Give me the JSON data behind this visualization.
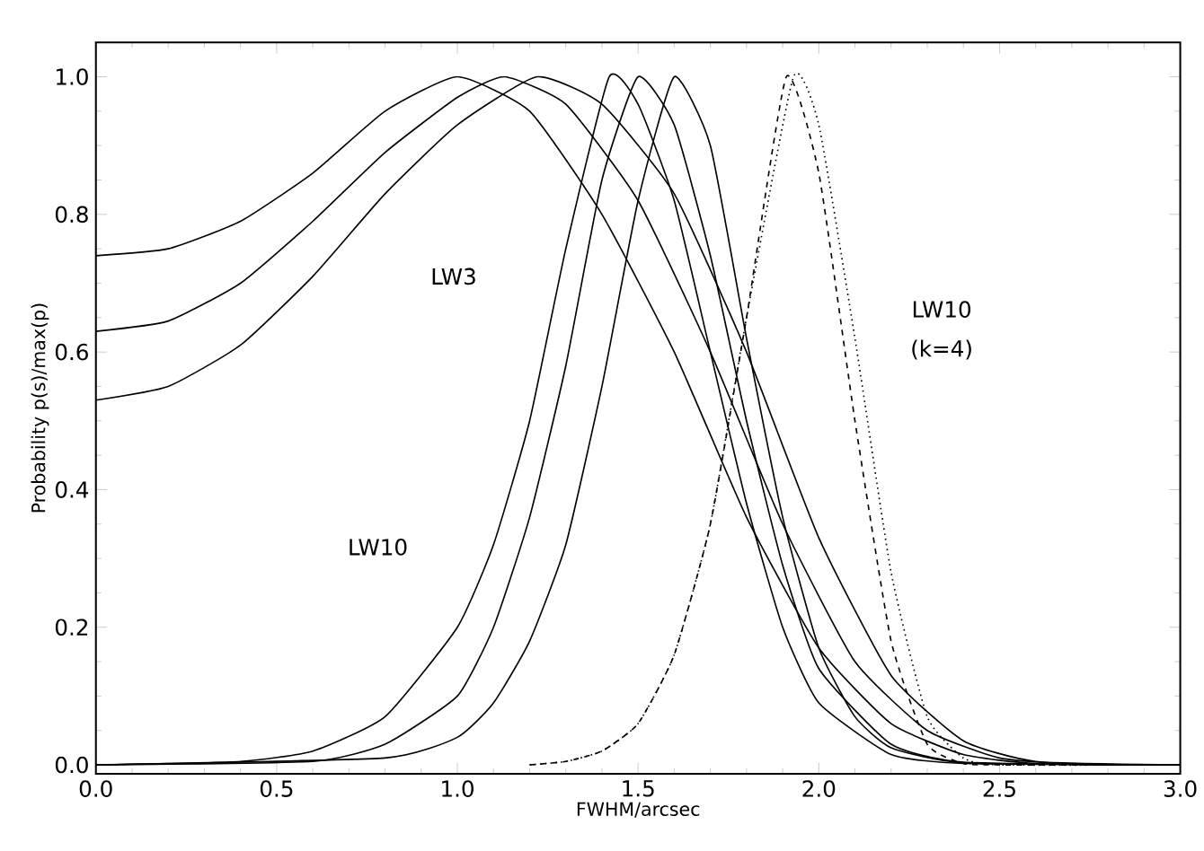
{
  "chart_data": {
    "type": "line",
    "xlabel": "FWHM/arcsec",
    "ylabel": "Probability p(s)/max(p)",
    "xlim": [
      0,
      3
    ],
    "ylim": [
      -0.013,
      1.05
    ],
    "xticks": [
      {
        "value": 0,
        "label": "0.0"
      },
      {
        "value": 0.5,
        "label": "0.5"
      },
      {
        "value": 1,
        "label": "1.0"
      },
      {
        "value": 1.5,
        "label": "1.5"
      },
      {
        "value": 2,
        "label": "2.0"
      },
      {
        "value": 2.5,
        "label": "2.5"
      },
      {
        "value": 3,
        "label": "3.0"
      }
    ],
    "yticks": [
      {
        "value": 0,
        "label": "0.0"
      },
      {
        "value": 0.2,
        "label": "0.2"
      },
      {
        "value": 0.4,
        "label": "0.4"
      },
      {
        "value": 0.6,
        "label": "0.6"
      },
      {
        "value": 0.8,
        "label": "0.8"
      },
      {
        "value": 1,
        "label": "1.0"
      }
    ],
    "annotations": [
      "LW3",
      "LW10",
      "LW10",
      "(k=4)"
    ],
    "series": [
      {
        "color": "#000000",
        "line_style": "solid",
        "x": [
          0,
          0.2,
          0.4,
          0.6,
          0.8,
          1.0,
          1.2,
          1.4,
          1.6,
          1.8,
          2.0,
          2.2,
          2.4,
          2.6,
          3.0
        ],
        "values": [
          0.74,
          0.75,
          0.79,
          0.86,
          0.95,
          1.0,
          0.95,
          0.8,
          0.6,
          0.36,
          0.17,
          0.06,
          0.015,
          0.002,
          0
        ]
      },
      {
        "color": "#000000",
        "line_style": "solid",
        "x": [
          0,
          0.2,
          0.4,
          0.6,
          0.8,
          1.0,
          1.13,
          1.3,
          1.5,
          1.7,
          1.9,
          2.1,
          2.3,
          2.5,
          2.7,
          3.0
        ],
        "values": [
          0.63,
          0.645,
          0.7,
          0.79,
          0.89,
          0.97,
          1.0,
          0.96,
          0.82,
          0.6,
          0.35,
          0.15,
          0.05,
          0.01,
          0.001,
          0
        ]
      },
      {
        "color": "#000000",
        "line_style": "solid",
        "x": [
          0,
          0.2,
          0.4,
          0.6,
          0.8,
          1.0,
          1.22,
          1.4,
          1.6,
          1.8,
          2.0,
          2.2,
          2.4,
          2.6,
          3.0
        ],
        "values": [
          0.53,
          0.55,
          0.61,
          0.71,
          0.83,
          0.93,
          1.0,
          0.96,
          0.83,
          0.6,
          0.33,
          0.13,
          0.035,
          0.005,
          0
        ]
      },
      {
        "color": "#000000",
        "line_style": "solid",
        "x": [
          0,
          0.4,
          0.6,
          0.8,
          1.0,
          1.1,
          1.2,
          1.3,
          1.42,
          1.5,
          1.6,
          1.7,
          1.8,
          1.9,
          2.0,
          2.2,
          2.4,
          3.0
        ],
        "values": [
          0,
          0.005,
          0.02,
          0.07,
          0.2,
          0.32,
          0.5,
          0.75,
          1.0,
          0.96,
          0.82,
          0.6,
          0.38,
          0.2,
          0.09,
          0.015,
          0.002,
          0
        ]
      },
      {
        "color": "#000000",
        "line_style": "solid",
        "x": [
          0,
          0.6,
          0.8,
          1.0,
          1.1,
          1.2,
          1.3,
          1.4,
          1.5,
          1.6,
          1.7,
          1.8,
          1.9,
          2.0,
          2.2,
          2.4,
          3.0
        ],
        "values": [
          0,
          0.005,
          0.03,
          0.1,
          0.2,
          0.36,
          0.58,
          0.85,
          1.0,
          0.93,
          0.74,
          0.5,
          0.29,
          0.14,
          0.03,
          0.004,
          0
        ]
      },
      {
        "color": "#000000",
        "line_style": "solid",
        "x": [
          0,
          0.8,
          1.0,
          1.1,
          1.2,
          1.3,
          1.4,
          1.5,
          1.6,
          1.7,
          1.8,
          1.9,
          2.0,
          2.1,
          2.2,
          2.4,
          3.0
        ],
        "values": [
          0,
          0.01,
          0.04,
          0.09,
          0.18,
          0.32,
          0.55,
          0.82,
          1.0,
          0.9,
          0.62,
          0.36,
          0.17,
          0.07,
          0.025,
          0.003,
          0
        ]
      },
      {
        "color": "#000000",
        "line_style": "dashed",
        "x": [
          1.2,
          1.3,
          1.4,
          1.5,
          1.6,
          1.7,
          1.8,
          1.91,
          2.0,
          2.1,
          2.2,
          2.3,
          2.4,
          2.5,
          3.0
        ],
        "values": [
          0,
          0.005,
          0.02,
          0.06,
          0.16,
          0.35,
          0.65,
          1.0,
          0.86,
          0.5,
          0.18,
          0.03,
          0.002,
          0,
          0
        ]
      },
      {
        "color": "#000000",
        "line_style": "dotted",
        "x": [
          1.2,
          1.3,
          1.4,
          1.5,
          1.6,
          1.7,
          1.8,
          1.93,
          2.0,
          2.1,
          2.2,
          2.3,
          2.4,
          2.5,
          3.0
        ],
        "values": [
          0,
          0.005,
          0.02,
          0.06,
          0.16,
          0.35,
          0.65,
          1.0,
          0.93,
          0.62,
          0.28,
          0.07,
          0.01,
          0,
          0
        ]
      }
    ]
  }
}
